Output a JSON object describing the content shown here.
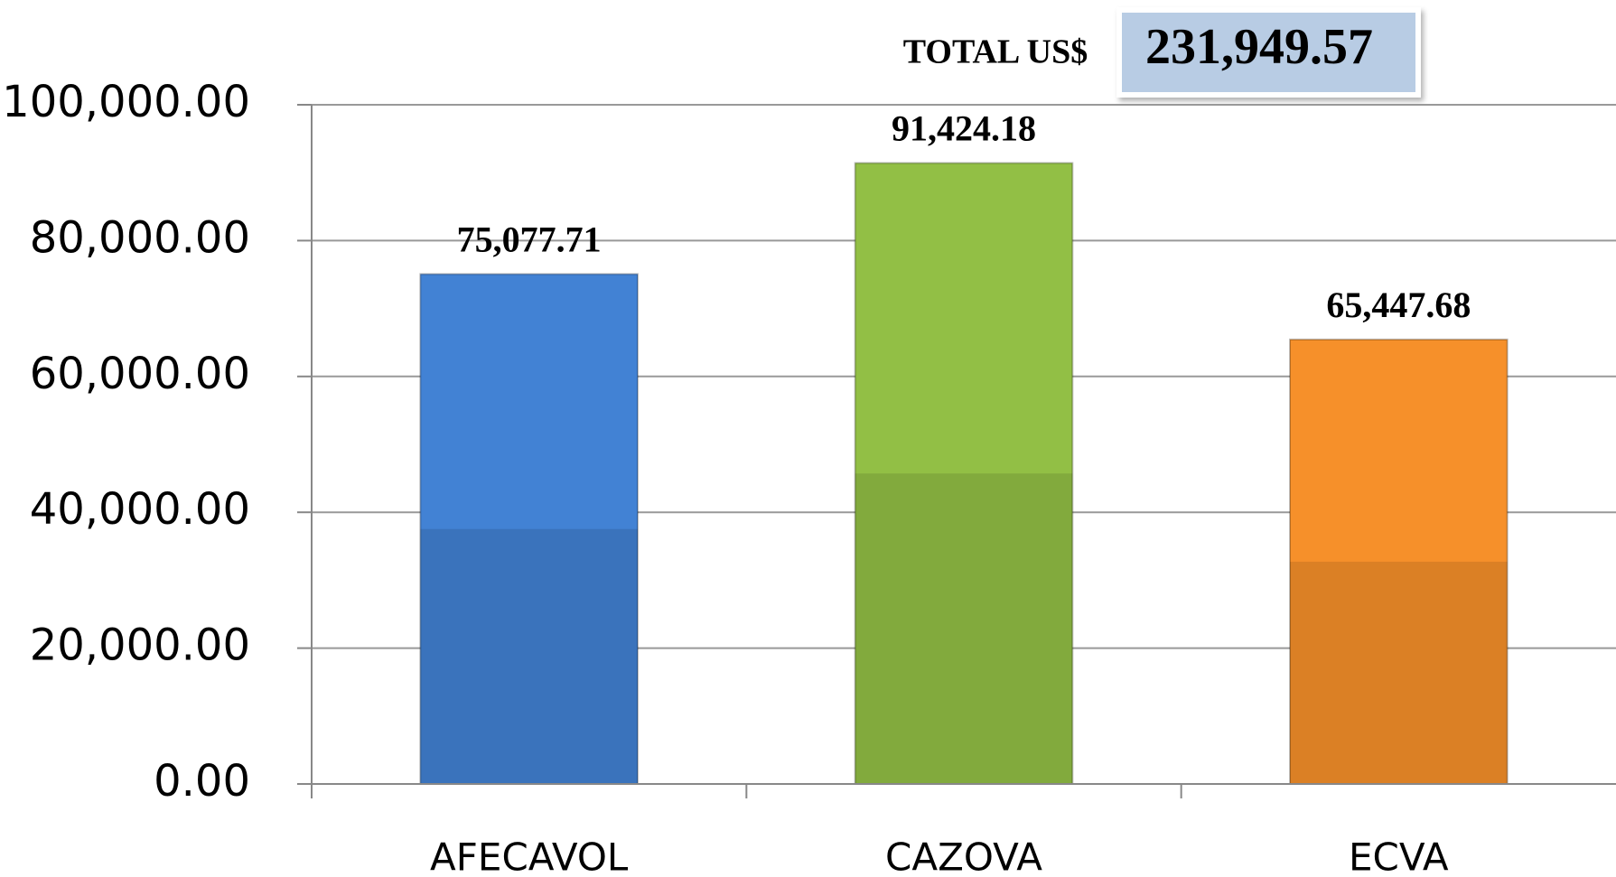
{
  "chart_data": {
    "type": "bar",
    "categories": [
      "AFECAVOL",
      "CAZOVA",
      "ECVA"
    ],
    "values": [
      75077.71,
      91424.18,
      65447.68
    ],
    "value_labels": [
      "75,077.71",
      "91,424.18",
      "65,447.68"
    ],
    "colors": [
      "#4282d4",
      "#92bf45",
      "#f6902a"
    ],
    "ylim": [
      0,
      100000
    ],
    "yticks": [
      {
        "value": 0,
        "label": "0.00"
      },
      {
        "value": 20000,
        "label": "20,000.00"
      },
      {
        "value": 40000,
        "label": "40,000.00"
      },
      {
        "value": 60000,
        "label": "60,000.00"
      },
      {
        "value": 80000,
        "label": "80,000.00"
      },
      {
        "value": 100000,
        "label": "100,000.00"
      }
    ],
    "grid": true,
    "annotation": {
      "label": "TOTAL US$",
      "text": "231,949.57"
    }
  }
}
